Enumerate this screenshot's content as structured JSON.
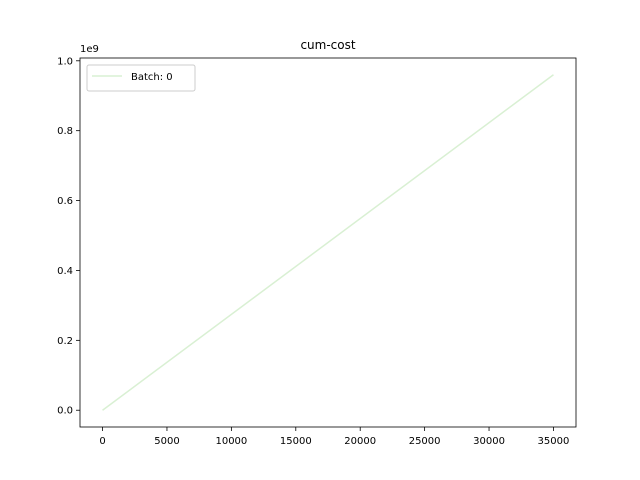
{
  "chart_data": {
    "type": "line",
    "title": "cum-cost",
    "xlabel": "",
    "ylabel": "",
    "y_offset_label": "1e9",
    "x_ticks": [
      0,
      5000,
      10000,
      15000,
      20000,
      25000,
      30000,
      35000
    ],
    "x_tick_labels": [
      "0",
      "5000",
      "10000",
      "15000",
      "20000",
      "25000",
      "30000",
      "35000"
    ],
    "y_ticks": [
      0.0,
      0.2,
      0.4,
      0.6,
      0.8,
      1.0
    ],
    "y_tick_labels": [
      "0.0",
      "0.2",
      "0.4",
      "0.6",
      "0.8",
      "1.0"
    ],
    "xlim": [
      -1750,
      36750
    ],
    "ylim": [
      -0.048,
      1.008
    ],
    "grid": false,
    "legend_position": "upper-left",
    "series": [
      {
        "name": "Batch: 0",
        "color": "#d9f0d3",
        "x": [
          0,
          35000
        ],
        "y": [
          0.0,
          0.96
        ]
      }
    ]
  }
}
